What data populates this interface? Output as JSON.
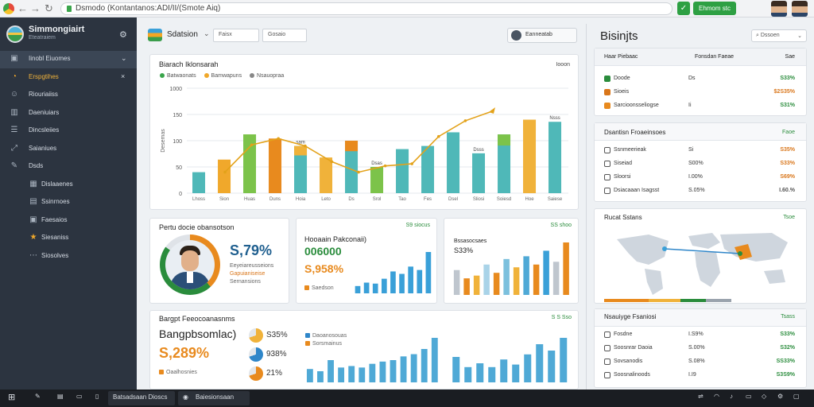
{
  "browser": {
    "address": "Dsmodo (Kontantanos:ADI/II/(Smote Aiq)",
    "green_button": "Ehmom stc"
  },
  "sidebar": {
    "brand_title": "Simmongiairt",
    "brand_sub": "Eteatraiem",
    "items": [
      {
        "label": "Iinobl Eiuomes",
        "icon": "folder-icon",
        "active": true
      },
      {
        "label": "Erspgtihes",
        "icon": "clock-icon",
        "active": false
      },
      {
        "label": "Riouriaiiss",
        "icon": "user-icon",
        "active": false
      },
      {
        "label": "Daeniuiars",
        "icon": "chart-icon",
        "active": false
      },
      {
        "label": "Dincsleiies",
        "icon": "list-icon",
        "active": false
      },
      {
        "label": "Saianiues",
        "icon": "share-icon",
        "active": false
      },
      {
        "label": "Dsds",
        "icon": "tools-icon",
        "active": false
      },
      {
        "label": "Dislaaenes",
        "icon": "grid-icon",
        "active": false
      },
      {
        "label": "Ssinrnoes",
        "icon": "table-icon",
        "active": false
      },
      {
        "label": "Faesaios",
        "icon": "box-icon",
        "active": false
      },
      {
        "label": "Siesaniss",
        "icon": "star-icon",
        "active": false
      },
      {
        "label": "Siosolves",
        "icon": "dots-icon",
        "active": false
      }
    ]
  },
  "header": {
    "title": "Sdatsion",
    "field1": "Faisx",
    "field2": "Gosaio",
    "user": "Eanneatab"
  },
  "main_chart": {
    "title": "Biarach Iklonsarah",
    "tag": "Iooon",
    "legend": [
      "Batwaonats",
      "Bamwapuns",
      "Nsauopraa"
    ]
  },
  "chart_data": {
    "type": "bar",
    "title": "Biarach Iklonsarah",
    "ylabel": "Desemas",
    "ylim": [
      0,
      1000
    ],
    "yticks": [
      "0",
      "50",
      "100",
      "150",
      "1000"
    ],
    "categories": [
      "Lhoss",
      "Sion",
      "Huas",
      "Duns",
      "Hoia",
      "Leto",
      "Ds",
      "Srol",
      "Tao",
      "Fes",
      "Dsel",
      "Sliosi",
      "Soiesd",
      "Hoe",
      "Saiese"
    ],
    "values": [
      200,
      320,
      560,
      520,
      450,
      340,
      500,
      250,
      420,
      450,
      580,
      380,
      560,
      700,
      680
    ],
    "line": [
      200,
      460,
      520,
      450,
      300,
      200,
      260,
      280,
      540,
      690,
      780
    ],
    "labels": [
      "",
      "",
      "",
      "",
      "sam",
      "",
      "",
      "Dsas",
      "",
      "",
      "",
      "Dsss",
      "",
      "",
      "Nsss"
    ]
  },
  "kpi1": {
    "title": "Pertu docie obansotson",
    "value": "S,79%",
    "sub1": "Eeyeiareusseions",
    "sub2": "Gapuianiseise",
    "sub3": "Sernansions"
  },
  "kpi2": {
    "title": "Hooaain Pakconaii)",
    "tag": "S9 siocus",
    "value1": "006000",
    "value2": "S,958%",
    "sub": "Saedson",
    "bars": [
      15,
      22,
      20,
      30,
      45,
      40,
      55,
      48,
      85
    ]
  },
  "kpi3": {
    "title": "Bssasocsaes",
    "tag": "SS shoo",
    "value": "S33%",
    "bars": [
      45,
      30,
      35,
      55,
      40,
      65,
      50,
      70,
      55,
      80,
      60,
      95
    ]
  },
  "bottom_card": {
    "title": "Bargpt Feeocoanasnms",
    "tag": "S S Sso",
    "big1": "Bangpbsomlac)",
    "big2": "S,289%",
    "sub": "Oaalhosnies",
    "donuts": [
      {
        "pct": "S35%",
        "color": "#f0b23a"
      },
      {
        "pct": "938%",
        "color": "#2f86c9"
      },
      {
        "pct": "21%",
        "color": "#e88a1e"
      }
    ],
    "legend": [
      "Daoanosouas",
      "Sorsmainus"
    ],
    "bars1": [
      18,
      15,
      30,
      20,
      22,
      20,
      25,
      28,
      30,
      35,
      38,
      45,
      60
    ],
    "bars2": [
      20,
      12,
      15,
      12,
      18,
      14,
      22,
      30,
      25,
      35
    ]
  },
  "right": {
    "title": "Bisinjts",
    "search": "Dssoen",
    "table1": {
      "head": [
        "Haar Piebaac",
        "Fonsdan Faeae",
        "Sae"
      ],
      "rows": [
        {
          "c1": "Doode",
          "c2": "Ds",
          "c3": "S33%",
          "color": "#2a8c3c",
          "dot": "#2a8c3c"
        },
        {
          "c1": "Sioeis",
          "c2": "",
          "c3": "$2S35%",
          "color": "#d9761a",
          "dot": "#d9761a"
        },
        {
          "c1": "Sarcioonsseliogse",
          "c2": "Ii",
          "c3": "S31%",
          "color": "#2a8c3c",
          "dot": "#e88a1e"
        }
      ]
    },
    "table2": {
      "title": "Dsantisn Froaeinsoes",
      "tag": "Faoe",
      "rows": [
        {
          "c1": "Ssnmeerieak",
          "c2": "Si",
          "c3": "S35%",
          "color": "#d9761a"
        },
        {
          "c1": "Siseiad",
          "c2": "S00%",
          "c3": "S33%",
          "color": "#d9761a"
        },
        {
          "c1": "Sloorsi",
          "c2": "I.00%",
          "c3": "S69%",
          "color": "#d9761a"
        },
        {
          "c1": "Dsiacaaan Isagsst",
          "c2": "S.05%",
          "c3": "I.60.%",
          "color": "#555"
        }
      ]
    },
    "map": {
      "title": "Rucat Sstans",
      "tag": "Tsoe"
    },
    "table3": {
      "title": "Nsauiyge Fsaniosi",
      "tag": "Tsass",
      "rows": [
        {
          "c1": "Fosdne",
          "c2": "I.S9%",
          "c3": "S33%",
          "color": "#2a8c3c"
        },
        {
          "c1": "Soosnrar Daoia",
          "c2": "S.00%",
          "c3": "S32%",
          "color": "#2a8c3c"
        },
        {
          "c1": "Sovsanodis",
          "c2": "S.08%",
          "c3": "SS33%",
          "color": "#2a8c3c"
        },
        {
          "c1": "Soosnalinoods",
          "c2": "I.I9",
          "c3": "S3S9%",
          "color": "#2a8c3c"
        }
      ]
    }
  },
  "taskbar": {
    "item1": "Batsadsaan Dioscs",
    "item2": "Baiesionsaan"
  }
}
